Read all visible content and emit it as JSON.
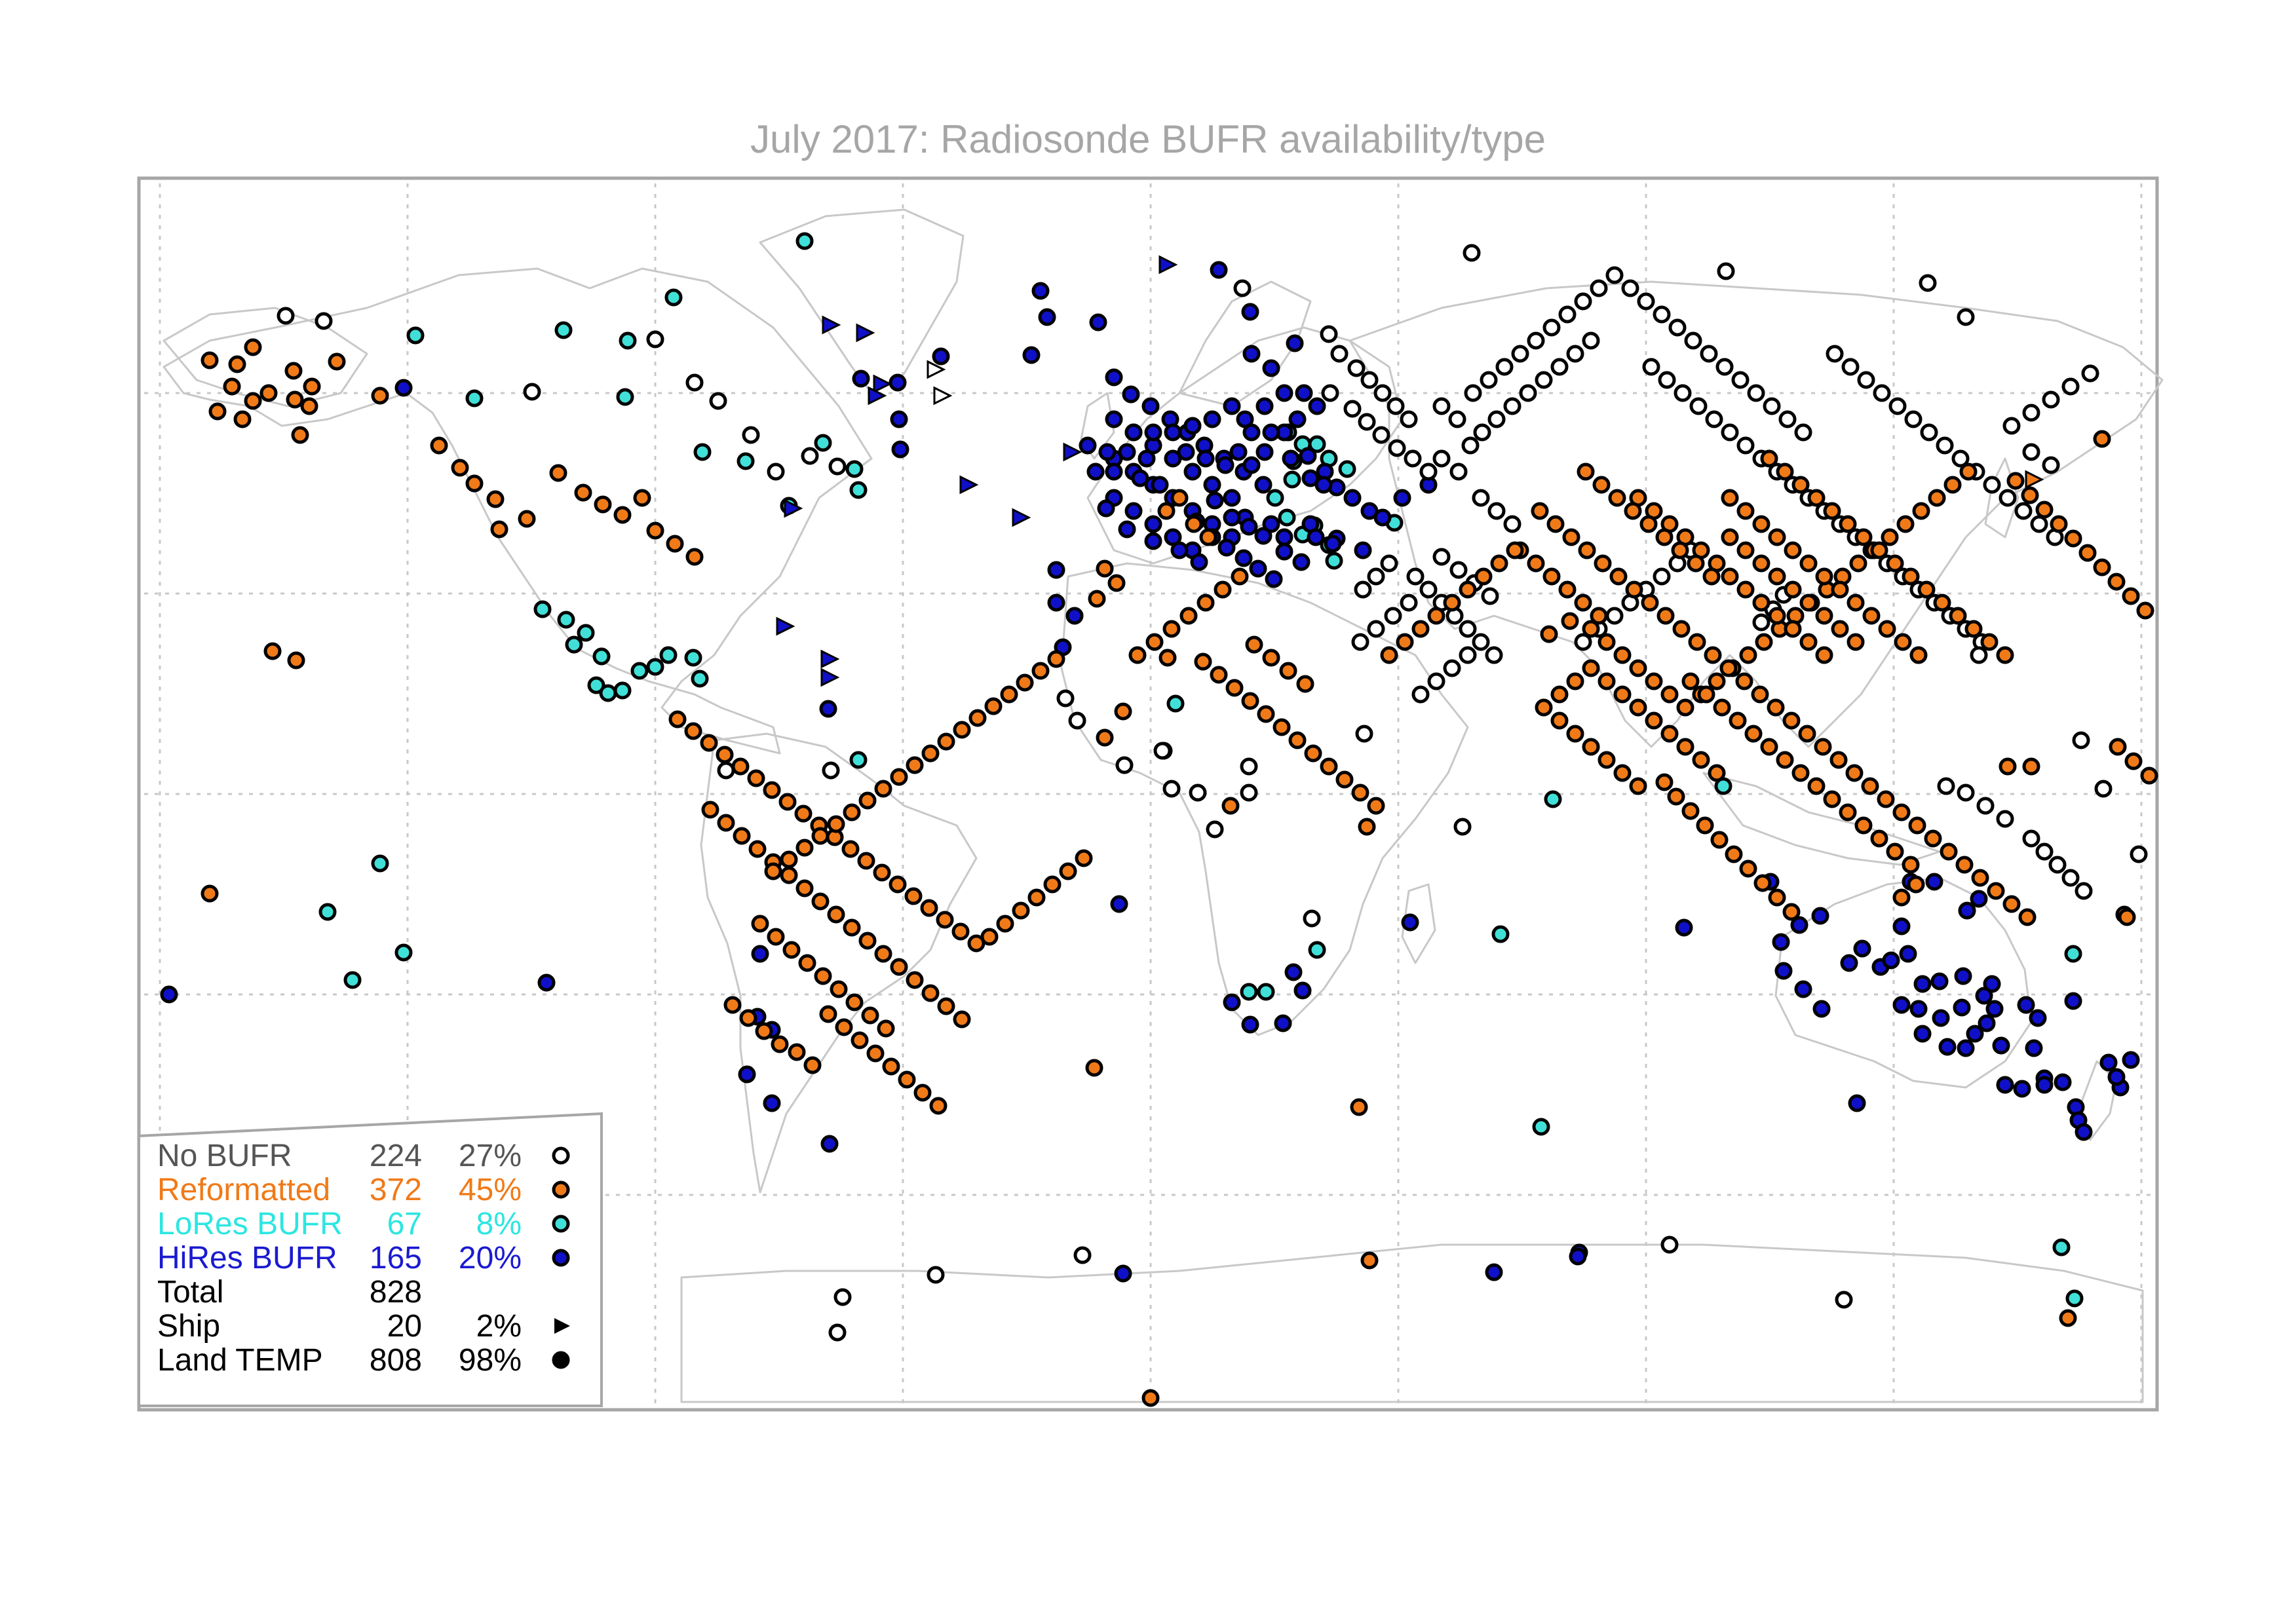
{
  "title": "July 2017: Radiosonde BUFR availability/type",
  "colors": {
    "no_bufr": "#ffffff",
    "reformatted": "#f07a18",
    "lores": "#40e0d8",
    "hires": "#1010c8",
    "frame": "#a6a6a6",
    "grid": "#c8c8c8",
    "coast": "#c8c8c8",
    "marker_edge": "#000000"
  },
  "legend": {
    "rows": [
      {
        "label": "No BUFR",
        "count": "224",
        "percent": "27%",
        "marker": "circle-open",
        "text_color": "#555555"
      },
      {
        "label": "Reformatted",
        "count": "372",
        "percent": "45%",
        "marker": "circle-orange",
        "text_color": "#f07a18"
      },
      {
        "label": "LoRes BUFR",
        "count": "67",
        "percent": "8%",
        "marker": "circle-cyan",
        "text_color": "#2ce6e0"
      },
      {
        "label": "HiRes BUFR",
        "count": "165",
        "percent": "20%",
        "marker": "circle-blue",
        "text_color": "#1a1ad0"
      },
      {
        "label": "Total",
        "count": "828",
        "percent": "",
        "marker": "",
        "text_color": "#000000"
      },
      {
        "label": "Ship",
        "count": "20",
        "percent": "2%",
        "marker": "triangle",
        "text_color": "#000000"
      },
      {
        "label": "Land TEMP",
        "count": "808",
        "percent": "98%",
        "marker": "circle-filled",
        "text_color": "#000000"
      }
    ]
  },
  "map_data": {
    "projection": "equirectangular",
    "lon_range": [
      -180,
      180
    ],
    "lat_range": [
      -90,
      90
    ],
    "gridlines": "dotted, every 45 degrees longitude and 30 degrees latitude",
    "marker_encoding": "fill color = BUFR type; circle = land TEMP station; triangle = ship",
    "stations_described": "828 radiosonde stations plotted as markers; Europe mostly HiRes BUFR (blue), North America/China/India mostly Reformatted (orange), Russia/Middle East mostly No BUFR (white), Australia mostly HiRes BUFR (blue)"
  }
}
